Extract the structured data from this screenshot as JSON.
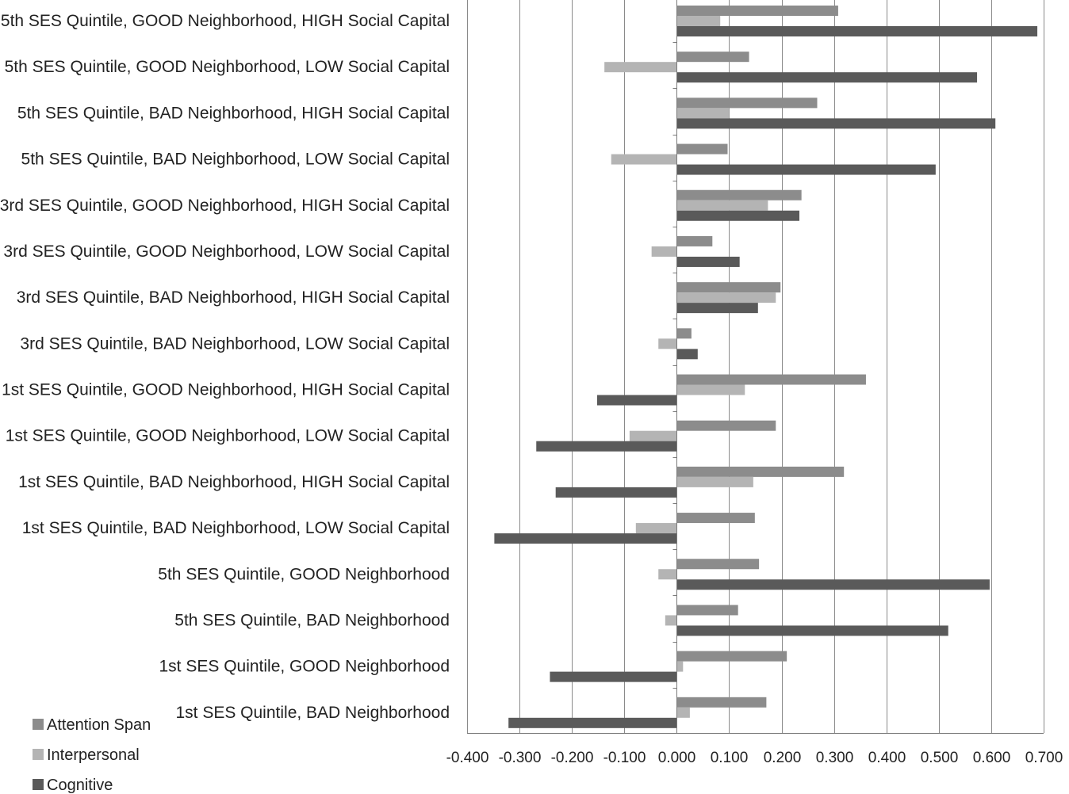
{
  "chart_data": {
    "type": "bar",
    "orientation": "horizontal",
    "title": "",
    "xlabel": "",
    "ylabel": "",
    "xlim": [
      -0.4,
      0.7
    ],
    "x_tick_step": 0.1,
    "x_ticks": [
      "-0.400",
      "-0.300",
      "-0.200",
      "-0.100",
      "0.000",
      "0.100",
      "0.200",
      "0.300",
      "0.400",
      "0.500",
      "0.600",
      "0.700"
    ],
    "grid": "vertical",
    "legend_position": "bottom-left",
    "categories": [
      "5th SES Quintile, GOOD Neighborhood, HIGH Social Capital",
      "5th SES Quintile, GOOD Neighborhood, LOW Social Capital",
      "5th SES Quintile, BAD Neighborhood, HIGH Social Capital",
      "5th SES Quintile, BAD Neighborhood, LOW Social Capital",
      "3rd SES Quintile, GOOD Neighborhood, HIGH Social Capital",
      "3rd SES Quintile, GOOD Neighborhood, LOW Social Capital",
      "3rd SES Quintile, BAD Neighborhood, HIGH Social Capital",
      "3rd SES Quintile, BAD Neighborhood, LOW Social Capital",
      "1st SES Quintile, GOOD Neighborhood, HIGH Social Capital",
      "1st SES Quintile, GOOD Neighborhood, LOW Social Capital",
      "1st SES Quintile, BAD Neighborhood, HIGH Social Capital",
      "1st SES Quintile, BAD Neighborhood, LOW Social Capital",
      "5th SES Quintile, GOOD Neighborhood",
      "5th SES Quintile, BAD Neighborhood",
      "1st SES Quintile, GOOD Neighborhood",
      "1st SES Quintile, BAD Neighborhood"
    ],
    "series": [
      {
        "name": "Attention Span",
        "color": "#8c8c8c",
        "values": [
          0.308,
          0.138,
          0.268,
          0.097,
          0.238,
          0.068,
          0.198,
          0.028,
          0.361,
          0.189,
          0.319,
          0.149,
          0.157,
          0.117,
          0.21,
          0.171
        ]
      },
      {
        "name": "Interpersonal",
        "color": "#b4b4b4",
        "values": [
          0.083,
          -0.138,
          0.1,
          -0.125,
          0.174,
          -0.048,
          0.189,
          -0.035,
          0.13,
          -0.09,
          0.146,
          -0.078,
          -0.035,
          -0.022,
          0.012,
          0.025
        ]
      },
      {
        "name": "Cognitive",
        "color": "#5a5a5a",
        "values": [
          0.688,
          0.573,
          0.608,
          0.494,
          0.234,
          0.12,
          0.155,
          0.04,
          -0.152,
          -0.268,
          -0.231,
          -0.348,
          0.597,
          0.518,
          -0.242,
          -0.321
        ]
      }
    ]
  }
}
